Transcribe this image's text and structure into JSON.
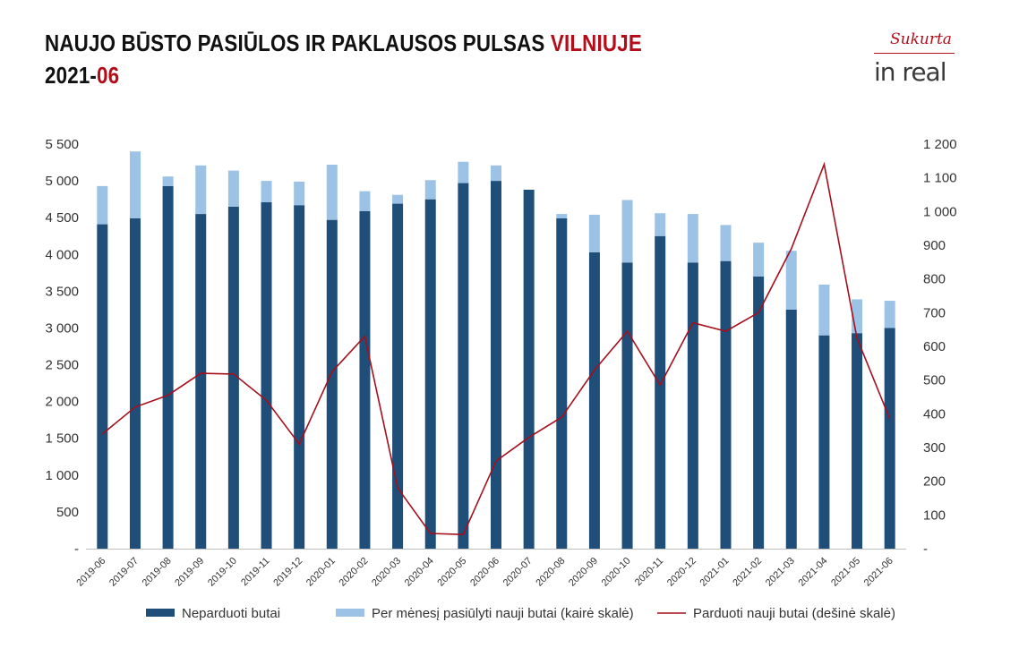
{
  "header": {
    "title_main": "NAUJO BŪSTO PASIŪLOS IR PAKLAUSOS PULSAS",
    "title_city": "VILNIUJE",
    "period_prefix": "2021-",
    "period_suffix": "06"
  },
  "logo": {
    "made_by": "Sukurta",
    "brand": "in real"
  },
  "colors": {
    "unsold": "#1f4e79",
    "offered": "#9cc3e6",
    "sold": "#a50f1c",
    "accent": "#b30d1a"
  },
  "chart_data": {
    "type": "bar",
    "stacked": true,
    "categories": [
      "2019-06",
      "2019-07",
      "2019-08",
      "2019-09",
      "2019-10",
      "2019-11",
      "2019-12",
      "2020-01",
      "2020-02",
      "2020-03",
      "2020-04",
      "2020-05",
      "2020-06",
      "2020-07",
      "2020-08",
      "2020-09",
      "2020-10",
      "2020-11",
      "2020-12",
      "2021-01",
      "2021-02",
      "2021-03",
      "2021-04",
      "2021-05",
      "2021-06"
    ],
    "series": [
      {
        "name": "Neparduoti butai",
        "type": "bar",
        "axis": "left",
        "values": [
          4410,
          4490,
          4930,
          4550,
          4650,
          4710,
          4670,
          4470,
          4590,
          4690,
          4750,
          4970,
          5000,
          4880,
          4490,
          4030,
          3890,
          4250,
          3890,
          3910,
          3700,
          3250,
          2900,
          2930,
          3000
        ]
      },
      {
        "name": "Per mėnesį pasiūlyti nauji butai (kairė skalė)",
        "type": "bar",
        "axis": "left",
        "values": [
          520,
          910,
          130,
          660,
          490,
          290,
          320,
          750,
          270,
          120,
          260,
          290,
          210,
          0,
          60,
          510,
          850,
          310,
          660,
          490,
          460,
          800,
          690,
          460,
          370
        ]
      },
      {
        "name": "Parduoti nauji butai (dešinė skalė)",
        "type": "line",
        "axis": "right",
        "values": [
          340,
          420,
          455,
          520,
          518,
          440,
          310,
          525,
          630,
          180,
          45,
          42,
          260,
          330,
          390,
          530,
          645,
          485,
          670,
          645,
          700,
          890,
          1140,
          625,
          385
        ]
      }
    ],
    "left_axis": {
      "min": 0,
      "max": 5500,
      "step": 500,
      "tick_labels": [
        "-",
        "500",
        "1 000",
        "1 500",
        "2 000",
        "2 500",
        "3 000",
        "3 500",
        "4 000",
        "4 500",
        "5 000",
        "5 500"
      ]
    },
    "right_axis": {
      "min": 0,
      "max": 1200,
      "step": 100,
      "tick_labels": [
        "-",
        "100",
        "200",
        "300",
        "400",
        "500",
        "600",
        "700",
        "800",
        "900",
        "1 000",
        "1 100",
        "1 200"
      ]
    },
    "grid": false,
    "legend_position": "bottom"
  }
}
